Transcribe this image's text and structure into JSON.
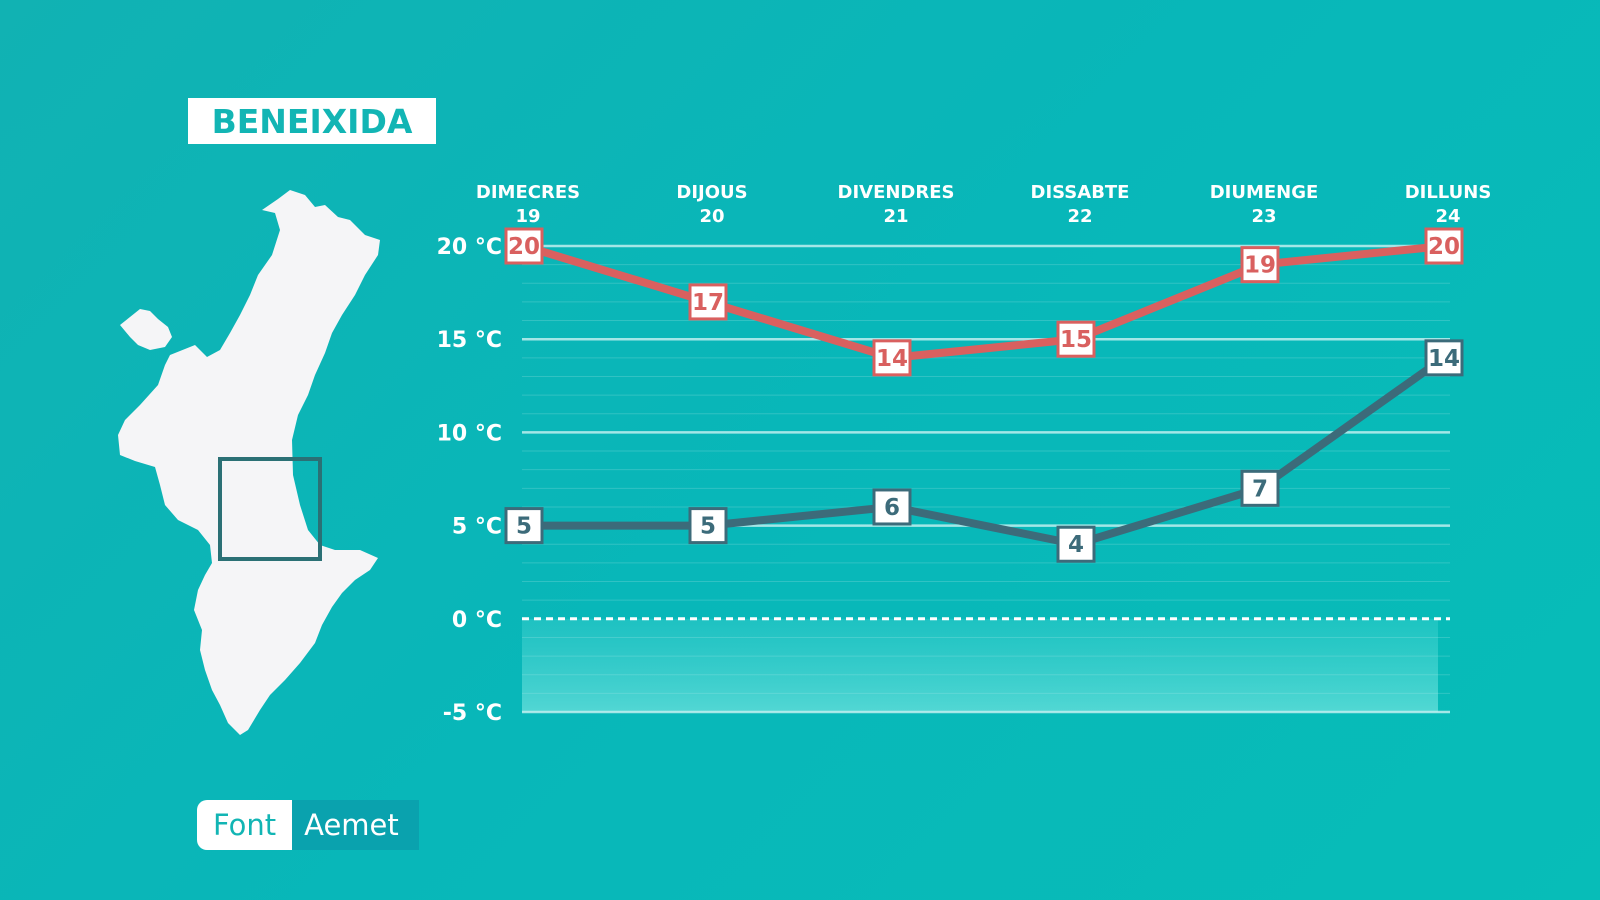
{
  "location": "BENEIXIDA",
  "source": {
    "label": "Font",
    "value": "Aemet"
  },
  "colors": {
    "background": "#0fb3b4",
    "max_series": "#d9605f",
    "min_series": "#3c6b7a",
    "grid": "#bfeeee"
  },
  "map_icon": "valencian-community-map",
  "chart_data": {
    "type": "line",
    "categories": [
      {
        "day": "DIMECRES",
        "num": "19"
      },
      {
        "day": "DIJOUS",
        "num": "20"
      },
      {
        "day": "DIVENDRES",
        "num": "21"
      },
      {
        "day": "DISSABTE",
        "num": "22"
      },
      {
        "day": "DIUMENGE",
        "num": "23"
      },
      {
        "day": "DILLUNS",
        "num": "24"
      }
    ],
    "series": [
      {
        "key": "max",
        "values": [
          20,
          17,
          14,
          15,
          19,
          20
        ]
      },
      {
        "key": "min",
        "values": [
          5,
          5,
          6,
          4,
          7,
          14
        ]
      }
    ],
    "ylim": [
      -5,
      20
    ],
    "yticks": [
      20,
      15,
      10,
      5,
      0,
      -5
    ],
    "ytick_labels": [
      "20 °C",
      "15 °C",
      "10 °C",
      "5 °C",
      "0 °C",
      "-5 °C"
    ],
    "grid": true,
    "freezing_line": 0
  }
}
